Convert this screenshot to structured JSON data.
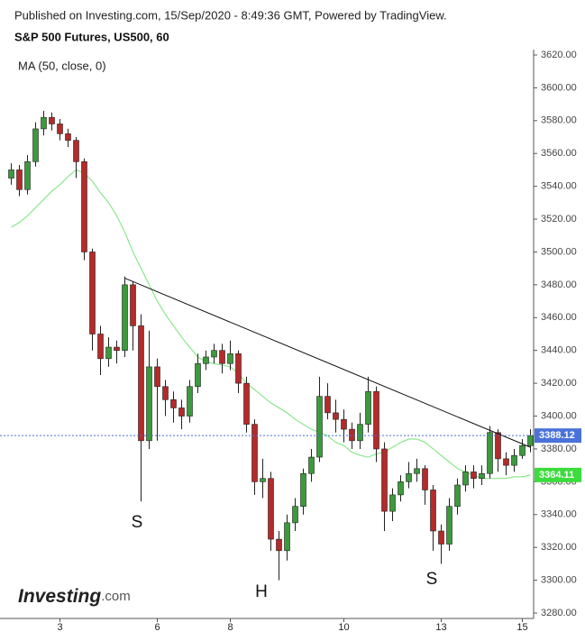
{
  "chart_data": {
    "type": "candlestick",
    "subtitle": "Published on Investing.com, 15/Sep/2020 - 8:49:36 GMT, Powered by TradingView.",
    "title": "S&P 500 Futures, US500, 60",
    "brand": [
      "Investing",
      ".com"
    ],
    "categories": [
      null,
      null,
      null,
      null,
      null,
      null,
      "3",
      null,
      null,
      null,
      null,
      null,
      null,
      null,
      null,
      null,
      null,
      null,
      "6",
      null,
      null,
      null,
      null,
      null,
      null,
      null,
      null,
      "8",
      null,
      null,
      null,
      null,
      null,
      null,
      null,
      null,
      null,
      null,
      null,
      null,
      null,
      "10",
      null,
      null,
      null,
      null,
      null,
      null,
      null,
      null,
      null,
      null,
      null,
      "13",
      null,
      null,
      null,
      null,
      null,
      null,
      null,
      null,
      null,
      "15",
      null
    ],
    "open": [
      3545,
      3550,
      3538,
      3555,
      3575,
      3582,
      3578,
      3572,
      3568,
      3555,
      3500,
      3450,
      3435,
      3442,
      3440,
      3480,
      3455,
      3385,
      3430,
      3418,
      3410,
      3405,
      3400,
      3418,
      3432,
      3436,
      3440,
      3432,
      3438,
      3420,
      3395,
      3360,
      3362,
      3325,
      3318,
      3335,
      3345,
      3365,
      3375,
      3412,
      3402,
      3398,
      3392,
      3385,
      3395,
      3415,
      3380,
      3342,
      3352,
      3360,
      3365,
      3368,
      3355,
      3330,
      3322,
      3345,
      3358,
      3366,
      3362,
      3365,
      3390,
      3374,
      3370,
      3376,
      3382
    ],
    "high": [
      3554,
      3553,
      3559,
      3579,
      3586,
      3585,
      3581,
      3575,
      3570,
      3557,
      3502,
      3455,
      3448,
      3446,
      3485,
      3482,
      3462,
      3452,
      3435,
      3422,
      3415,
      3410,
      3422,
      3438,
      3440,
      3444,
      3444,
      3446,
      3440,
      3424,
      3398,
      3374,
      3366,
      3330,
      3340,
      3350,
      3368,
      3380,
      3424,
      3420,
      3410,
      3404,
      3396,
      3402,
      3424,
      3418,
      3384,
      3356,
      3364,
      3372,
      3374,
      3370,
      3358,
      3334,
      3350,
      3362,
      3370,
      3370,
      3370,
      3394,
      3392,
      3378,
      3380,
      3386,
      3392
    ],
    "low": [
      3541,
      3534,
      3535,
      3552,
      3571,
      3574,
      3568,
      3564,
      3545,
      3495,
      3440,
      3425,
      3430,
      3432,
      3436,
      3440,
      3348,
      3380,
      3385,
      3400,
      3396,
      3392,
      3396,
      3414,
      3428,
      3432,
      3426,
      3428,
      3414,
      3390,
      3352,
      3350,
      3318,
      3300,
      3312,
      3330,
      3340,
      3360,
      3372,
      3398,
      3390,
      3384,
      3380,
      3380,
      3390,
      3372,
      3330,
      3336,
      3348,
      3356,
      3360,
      3346,
      3318,
      3310,
      3318,
      3340,
      3354,
      3356,
      3358,
      3362,
      3366,
      3364,
      3366,
      3374,
      3378
    ],
    "close": [
      3550,
      3538,
      3555,
      3575,
      3582,
      3578,
      3572,
      3568,
      3555,
      3500,
      3450,
      3435,
      3442,
      3440,
      3480,
      3455,
      3385,
      3430,
      3418,
      3410,
      3405,
      3400,
      3418,
      3432,
      3436,
      3440,
      3432,
      3438,
      3420,
      3395,
      3360,
      3362,
      3325,
      3318,
      3335,
      3345,
      3365,
      3375,
      3412,
      3402,
      3398,
      3392,
      3385,
      3395,
      3415,
      3380,
      3342,
      3352,
      3360,
      3365,
      3368,
      3355,
      3330,
      3322,
      3345,
      3358,
      3366,
      3362,
      3365,
      3390,
      3374,
      3370,
      3376,
      3382,
      3388.12
    ],
    "up_color": "#3c9a3c",
    "down_color": "#b52a2a",
    "last_price_color": "#4a72d8",
    "ma": {
      "name": "MA (50, close, 0)",
      "color": "#8ce88c",
      "values": [
        3515,
        3518,
        3522,
        3527,
        3532,
        3537,
        3541,
        3546,
        3550,
        3548,
        3543,
        3536,
        3530,
        3522,
        3512,
        3500,
        3490,
        3480,
        3470,
        3462,
        3455,
        3448,
        3442,
        3436,
        3433,
        3432,
        3431,
        3430,
        3426,
        3420,
        3416,
        3412,
        3408,
        3405,
        3402,
        3398,
        3395,
        3392,
        3390,
        3388,
        3384,
        3382,
        3378,
        3376,
        3375,
        3377,
        3378,
        3381,
        3384,
        3386,
        3386,
        3384,
        3380,
        3376,
        3372,
        3368,
        3366,
        3364,
        3362,
        3362,
        3362,
        3362,
        3363,
        3363,
        3364.11
      ]
    },
    "trendline": {
      "color": "#111111",
      "start": 3484,
      "end": 3381
    },
    "annotations": [
      "S",
      "H",
      "S"
    ],
    "ylim": [
      3280,
      3620
    ],
    "yticks": [
      {
        "value": 3280,
        "label": "3280.00"
      },
      {
        "value": 3300,
        "label": "3300.00"
      },
      {
        "value": 3320,
        "label": "3320.00"
      },
      {
        "value": 3340,
        "label": "3340.00"
      },
      {
        "value": 3360,
        "label": "3360.00"
      },
      {
        "value": 3380,
        "label": "3380.00"
      },
      {
        "value": 3400,
        "label": "3400.00"
      },
      {
        "value": 3420,
        "label": "3420.00"
      },
      {
        "value": 3440,
        "label": "3440.00"
      },
      {
        "value": 3460,
        "label": "3460.00"
      },
      {
        "value": 3480,
        "label": "3480.00"
      },
      {
        "value": 3500,
        "label": "3500.00"
      },
      {
        "value": 3520,
        "label": "3520.00"
      },
      {
        "value": 3540,
        "label": "3540.00"
      },
      {
        "value": 3560,
        "label": "3560.00"
      },
      {
        "value": 3580,
        "label": "3580.00"
      },
      {
        "value": 3600,
        "label": "3600.00"
      },
      {
        "value": 3620,
        "label": "3620.00"
      }
    ]
  }
}
